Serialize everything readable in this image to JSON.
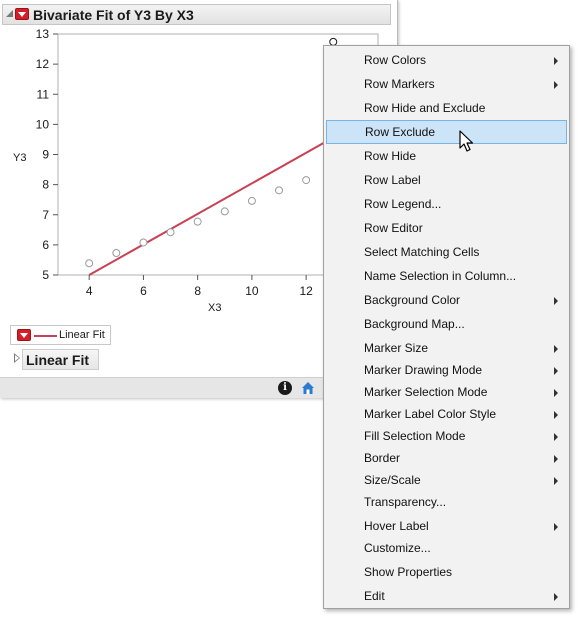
{
  "report": {
    "title": "Bivariate Fit of Y3 By X3",
    "y_axis_label": "Y3",
    "x_axis_label": "X3",
    "y_ticks": [
      "13",
      "12",
      "11",
      "10",
      "9",
      "8",
      "7",
      "6",
      "5"
    ],
    "x_ticks": [
      "4",
      "6",
      "8",
      "10",
      "12"
    ],
    "legend_label": "Linear Fit",
    "section_label": "Linear Fit",
    "info_icon_text": "i"
  },
  "chart_data": {
    "type": "scatter",
    "x": [
      4,
      5,
      6,
      7,
      8,
      9,
      10,
      11,
      12,
      13
    ],
    "y": [
      5.39,
      5.73,
      6.08,
      6.42,
      6.77,
      7.11,
      7.46,
      7.81,
      8.15,
      12.74
    ],
    "xlim": [
      2.85,
      14.65
    ],
    "ylim": [
      5,
      13
    ],
    "fit_line": {
      "name": "Linear Fit",
      "x": [
        4,
        14.65
      ],
      "y": [
        5.0,
        10.4
      ]
    },
    "xlabel": "X3",
    "ylabel": "Y3",
    "grid": false
  },
  "context_menu": {
    "items": [
      {
        "label": "Row Colors",
        "submenu": true
      },
      {
        "label": "Row Markers",
        "submenu": true
      },
      {
        "label": "Row Hide and Exclude",
        "submenu": false
      },
      {
        "label": "Row Exclude",
        "submenu": false,
        "highlighted": true
      },
      {
        "label": "Row Hide",
        "submenu": false
      },
      {
        "label": "Row Label",
        "submenu": false
      },
      {
        "label": "Row Legend...",
        "submenu": false
      },
      {
        "label": "Row Editor",
        "submenu": false
      },
      {
        "label": "Select Matching Cells",
        "submenu": false
      },
      {
        "label": "Name Selection in Column...",
        "submenu": false
      },
      {
        "label": "Background Color",
        "submenu": true
      },
      {
        "label": "Background Map...",
        "submenu": false
      },
      {
        "label": "Marker Size",
        "submenu": true
      },
      {
        "label": "Marker Drawing Mode",
        "submenu": true
      },
      {
        "label": "Marker Selection Mode",
        "submenu": true
      },
      {
        "label": "Marker Label Color Style",
        "submenu": true
      },
      {
        "label": "Fill Selection Mode",
        "submenu": true
      },
      {
        "label": "Border",
        "submenu": true
      },
      {
        "label": "Size/Scale",
        "submenu": true
      },
      {
        "label": "Transparency...",
        "submenu": false
      },
      {
        "label": "Hover Label",
        "submenu": true
      },
      {
        "label": "Customize...",
        "submenu": false
      },
      {
        "label": "Show Properties",
        "submenu": false
      },
      {
        "label": "Edit",
        "submenu": true
      }
    ]
  },
  "colors": {
    "fit_line": "#c84155",
    "marker": "#9a9a9a",
    "menu_highlight": "#cce4f7",
    "red_button": "#d21f2a"
  }
}
